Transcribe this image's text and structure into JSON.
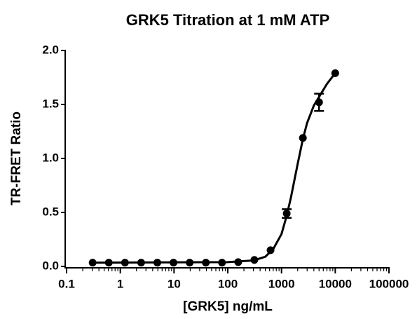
{
  "chart_data": {
    "type": "scatter",
    "title": "GRK5 Titration at 1 mM ATP",
    "x_label": "[GRK5] ng/mL",
    "y_label": "TR-FRET Ratio",
    "log_x": true,
    "color": "#000000",
    "x": [
      10000,
      5000,
      2500,
      1250,
      625,
      312.5,
      156.25,
      78.125,
      39.0625,
      19.53125,
      9.765625,
      4.8828125,
      2.44140625,
      1.220703125,
      0.6103515625,
      0.30517578125
    ],
    "values": [
      1.79,
      1.52,
      1.19,
      0.49,
      0.15,
      0.06,
      0.04,
      0.035,
      0.035,
      0.035,
      0.035,
      0.035,
      0.035,
      0.035,
      0.035,
      0.035
    ],
    "errors": [
      null,
      0.08,
      null,
      0.04,
      null,
      null,
      null,
      null,
      null,
      null,
      null,
      null,
      null,
      null,
      null,
      null
    ],
    "curve": {
      "x": [
        0.3,
        100,
        300,
        500,
        700,
        1000,
        1250,
        1500,
        2000,
        2500,
        3000,
        4000,
        5000,
        7000,
        10000
      ],
      "values": [
        0.035,
        0.04,
        0.055,
        0.09,
        0.16,
        0.3,
        0.47,
        0.64,
        0.95,
        1.18,
        1.33,
        1.49,
        1.57,
        1.69,
        1.79
      ]
    },
    "xlim": [
      0.1,
      100000
    ],
    "xticks": [
      0.1,
      1,
      10,
      100,
      1000,
      10000,
      100000
    ],
    "ylim": [
      0,
      2
    ],
    "yticks": [
      {
        "value": 0,
        "label": "0.0"
      },
      {
        "value": 0.5,
        "label": "0.5"
      },
      {
        "value": 1,
        "label": "1.0"
      },
      {
        "value": 1.5,
        "label": "1.5"
      },
      {
        "value": 2,
        "label": "2.0"
      }
    ]
  }
}
